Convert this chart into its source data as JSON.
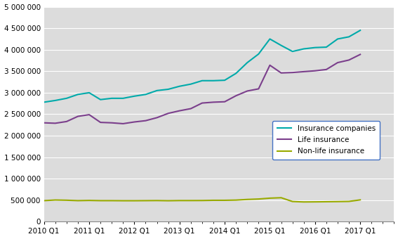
{
  "title": "",
  "xlabel": "",
  "ylabel": "",
  "ylim": [
    0,
    5000000
  ],
  "yticks": [
    0,
    500000,
    1000000,
    1500000,
    2000000,
    2500000,
    3000000,
    3500000,
    4000000,
    4500000,
    5000000
  ],
  "x_labels": [
    "2010 Q1",
    "2011 Q1",
    "2012 Q1",
    "2013 Q1",
    "2014 Q1",
    "2015 Q1",
    "2016 Q1",
    "2017 Q1"
  ],
  "n_quarters": 29,
  "insurance_companies": [
    2780000,
    2820000,
    2870000,
    2960000,
    3000000,
    2840000,
    2870000,
    2870000,
    2920000,
    2960000,
    3050000,
    3080000,
    3150000,
    3200000,
    3280000,
    3280000,
    3290000,
    3450000,
    3700000,
    3900000,
    4250000,
    4100000,
    3960000,
    4020000,
    4050000,
    4060000,
    4250000,
    4300000,
    4450000
  ],
  "life_insurance": [
    2300000,
    2290000,
    2330000,
    2450000,
    2490000,
    2310000,
    2300000,
    2280000,
    2320000,
    2350000,
    2420000,
    2520000,
    2580000,
    2630000,
    2760000,
    2780000,
    2790000,
    2930000,
    3040000,
    3090000,
    3640000,
    3460000,
    3470000,
    3490000,
    3510000,
    3540000,
    3700000,
    3760000,
    3890000
  ],
  "non_life_insurance": [
    490000,
    505000,
    500000,
    490000,
    495000,
    490000,
    490000,
    488000,
    488000,
    490000,
    492000,
    488000,
    492000,
    492000,
    493000,
    498000,
    498000,
    503000,
    518000,
    528000,
    548000,
    558000,
    470000,
    460000,
    462000,
    465000,
    468000,
    472000,
    508000
  ],
  "color_insurance": "#00AAAA",
  "color_life": "#7B3F8C",
  "color_nonlife": "#99AA00",
  "bg_color": "#DCDCDC",
  "grid_color": "#FFFFFF",
  "legend_edge_color": "#4472C4",
  "legend_labels": [
    "Insurance companies",
    "Life insurance",
    "Non-life insurance"
  ]
}
